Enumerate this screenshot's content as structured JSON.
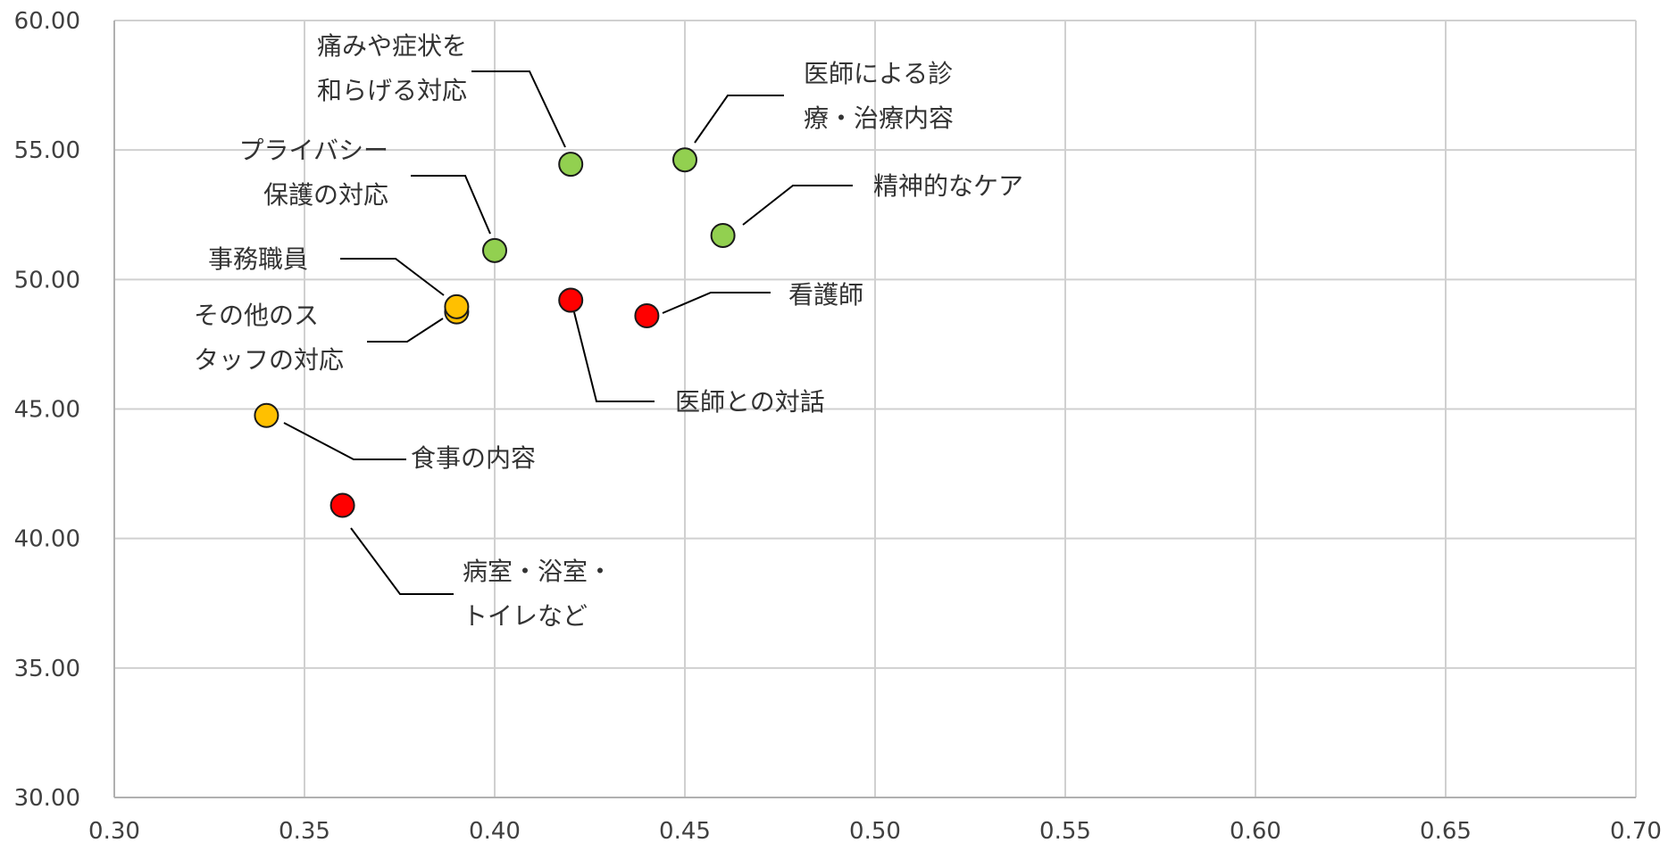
{
  "chart_data": {
    "type": "scatter",
    "title": "",
    "xlabel": "",
    "ylabel": "",
    "xlim": [
      0.3,
      0.7
    ],
    "ylim": [
      30.0,
      60.0
    ],
    "x_ticks": [
      "0.30",
      "0.35",
      "0.40",
      "0.45",
      "0.50",
      "0.55",
      "0.60",
      "0.65",
      "0.70"
    ],
    "y_ticks": [
      "30.00",
      "35.00",
      "40.00",
      "45.00",
      "50.00",
      "55.00",
      "60.00"
    ],
    "grid": true,
    "legend": "none",
    "colors": {
      "green": "#92d050",
      "red": "#ff0000",
      "yellow": "#ffc000"
    },
    "points": [
      {
        "label": [
          "痛みや症状を",
          "和らげる対応"
        ],
        "x": 0.42,
        "y": 54.45,
        "color": "green"
      },
      {
        "label": [
          "医師による診",
          "療・治療内容"
        ],
        "x": 0.45,
        "y": 54.62,
        "color": "green"
      },
      {
        "label": [
          "精神的なケア"
        ],
        "x": 0.46,
        "y": 51.7,
        "color": "green"
      },
      {
        "label": [
          "プライバシー",
          "保護の対応"
        ],
        "x": 0.4,
        "y": 51.12,
        "color": "green"
      },
      {
        "label": [
          "医師との対話"
        ],
        "x": 0.42,
        "y": 49.2,
        "color": "red"
      },
      {
        "label": [
          "看護師"
        ],
        "x": 0.44,
        "y": 48.6,
        "color": "red"
      },
      {
        "label": [
          "病室・浴室・",
          "トイレなど"
        ],
        "x": 0.36,
        "y": 41.28,
        "color": "red"
      },
      {
        "label": [
          "その他のス",
          "タッフの対応"
        ],
        "x": 0.39,
        "y": 48.75,
        "color": "yellow"
      },
      {
        "label": [
          "事務職員"
        ],
        "x": 0.39,
        "y": 48.95,
        "color": "yellow"
      },
      {
        "label": [
          "食事の内容"
        ],
        "x": 0.34,
        "y": 44.75,
        "color": "yellow"
      }
    ]
  }
}
